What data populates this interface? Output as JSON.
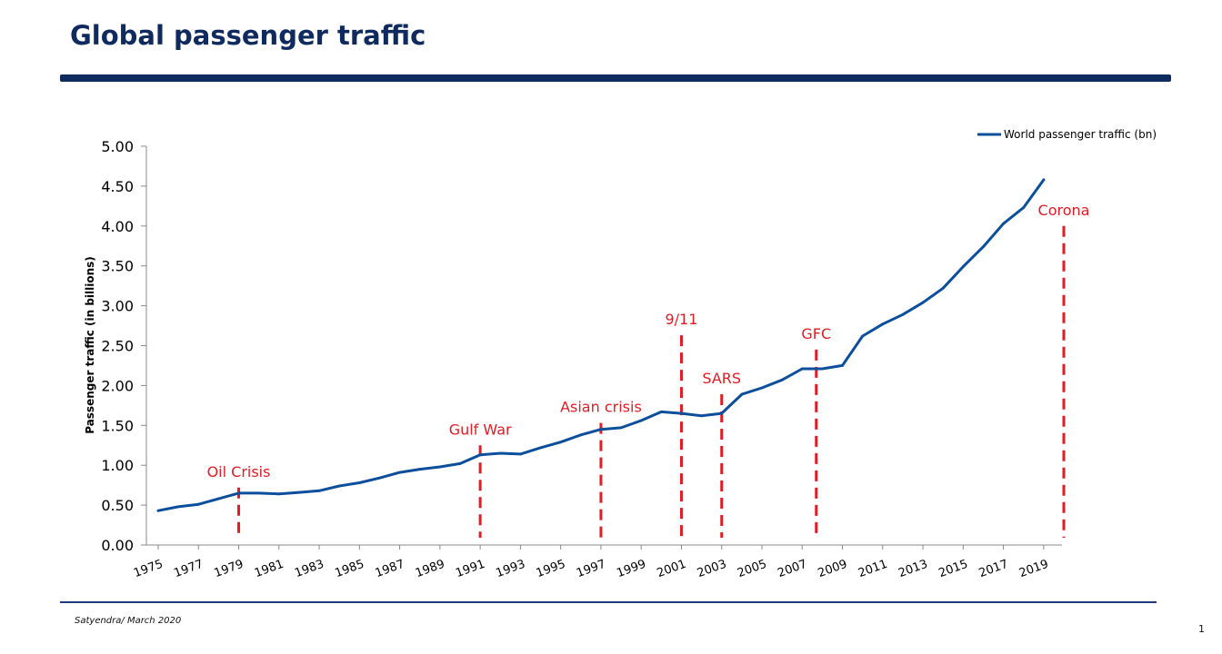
{
  "slide": {
    "title": "Global passenger traffic",
    "footer": "Satyendra/ March 2020",
    "page_number": "1"
  },
  "colors": {
    "title": "#0f2a5e",
    "series": "#0b4f9c",
    "event": "#e31b23"
  },
  "chart_data": {
    "type": "line",
    "title": "",
    "xlabel": "",
    "ylabel": "Passenger traffic (in billions)",
    "ylim": [
      0,
      5
    ],
    "yticks": [
      "0.00",
      "0.50",
      "1.00",
      "1.50",
      "2.00",
      "2.50",
      "3.00",
      "3.50",
      "4.00",
      "4.50",
      "5.00"
    ],
    "x_tick_labels": [
      "1975",
      "1977",
      "1979",
      "1981",
      "1983",
      "1985",
      "1987",
      "1989",
      "1991",
      "1993",
      "1995",
      "1997",
      "1999",
      "2001",
      "2003",
      "2005",
      "2007",
      "2009",
      "2011",
      "2013",
      "2015",
      "2017",
      "2019"
    ],
    "legend": "top-right",
    "grid": false,
    "series": [
      {
        "name": "World passenger traffic (bn)",
        "x": [
          1975,
          1976,
          1977,
          1978,
          1979,
          1980,
          1981,
          1982,
          1983,
          1984,
          1985,
          1986,
          1987,
          1988,
          1989,
          1990,
          1991,
          1992,
          1993,
          1994,
          1995,
          1996,
          1997,
          1998,
          1999,
          2000,
          2001,
          2002,
          2003,
          2004,
          2005,
          2006,
          2007,
          2008,
          2009,
          2010,
          2011,
          2012,
          2013,
          2014,
          2015,
          2016,
          2017,
          2018,
          2019
        ],
        "values": [
          0.43,
          0.48,
          0.51,
          0.58,
          0.65,
          0.65,
          0.64,
          0.66,
          0.68,
          0.74,
          0.78,
          0.84,
          0.91,
          0.95,
          0.98,
          1.02,
          1.13,
          1.15,
          1.14,
          1.22,
          1.29,
          1.38,
          1.45,
          1.47,
          1.56,
          1.67,
          1.65,
          1.62,
          1.65,
          1.89,
          1.97,
          2.07,
          2.21,
          2.21,
          2.25,
          2.62,
          2.77,
          2.89,
          3.04,
          3.22,
          3.49,
          3.74,
          4.03,
          4.23,
          4.58
        ]
      }
    ],
    "annotations": [
      {
        "label": "Oil Crisis",
        "x": 1979,
        "top": 0.72
      },
      {
        "label": "Gulf War",
        "x": 1991,
        "top": 1.25
      },
      {
        "label": "Asian crisis",
        "x": 1997,
        "top": 1.53
      },
      {
        "label": "9/11",
        "x": 2001,
        "top": 2.63
      },
      {
        "label": "SARS",
        "x": 2003,
        "top": 1.89
      },
      {
        "label": "GFC",
        "x": 2007.7,
        "top": 2.45
      },
      {
        "label": "Corona",
        "x": 2020,
        "top": 4.0
      }
    ]
  }
}
